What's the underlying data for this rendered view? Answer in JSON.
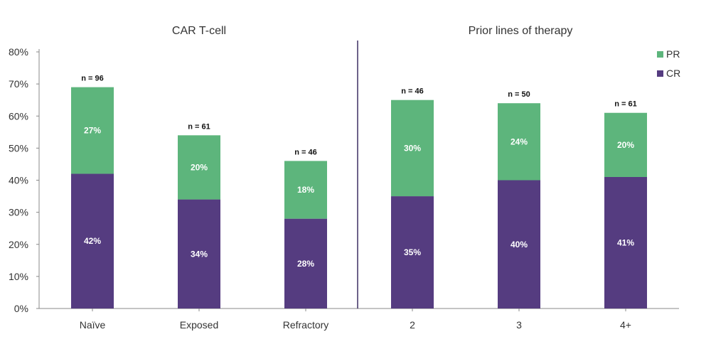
{
  "chart_data": {
    "type": "bar",
    "stacked": true,
    "sections": [
      {
        "title": "CAR T-cell",
        "categories": [
          "Naïve",
          "Exposed",
          "Refractory"
        ]
      },
      {
        "title": "Prior lines of therapy",
        "categories": [
          "2",
          "3",
          "4+"
        ]
      }
    ],
    "categories": [
      "Naïve",
      "Exposed",
      "Refractory",
      "2",
      "3",
      "4+"
    ],
    "n_labels": [
      "n = 96",
      "n = 61",
      "n = 46",
      "n = 46",
      "n = 50",
      "n = 61"
    ],
    "series": [
      {
        "name": "CR",
        "color": "#553c80",
        "values": [
          42,
          34,
          28,
          35,
          40,
          41
        ],
        "labels": [
          "42%",
          "34%",
          "28%",
          "35%",
          "40%",
          "41%"
        ]
      },
      {
        "name": "PR",
        "color": "#5db57c",
        "values": [
          27,
          20,
          18,
          30,
          24,
          20
        ],
        "labels": [
          "27%",
          "20%",
          "18%",
          "30%",
          "24%",
          "20%"
        ]
      }
    ],
    "legend": [
      {
        "name": "PR",
        "color": "#5db57c"
      },
      {
        "name": "CR",
        "color": "#553c80"
      }
    ],
    "legend_position": "top-right",
    "ylim": [
      0,
      80
    ],
    "yticks": [
      "0%",
      "10%",
      "20%",
      "30%",
      "40%",
      "50%",
      "60%",
      "70%",
      "80%"
    ],
    "xlabel": "",
    "ylabel": "",
    "grid": false
  }
}
